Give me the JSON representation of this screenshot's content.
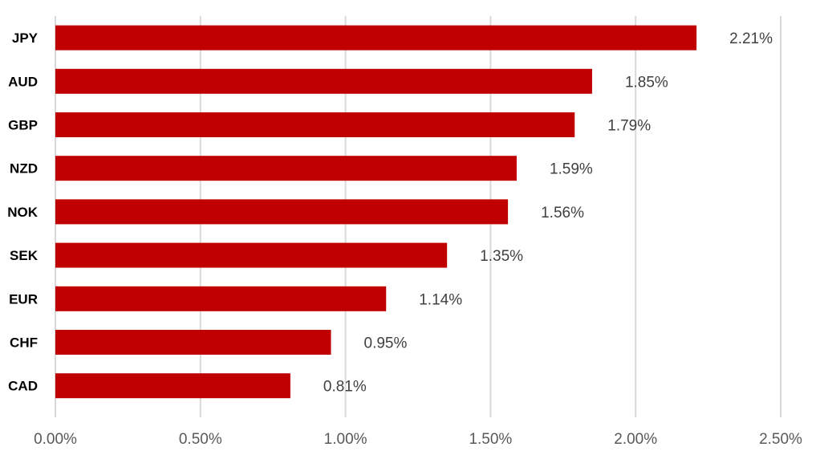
{
  "chart_data": {
    "type": "bar",
    "orientation": "horizontal",
    "categories": [
      "JPY",
      "AUD",
      "GBP",
      "NZD",
      "NOK",
      "SEK",
      "EUR",
      "CHF",
      "CAD"
    ],
    "values": [
      2.21,
      1.85,
      1.79,
      1.59,
      1.56,
      1.35,
      1.14,
      0.95,
      0.81
    ],
    "value_labels": [
      "2.21%",
      "1.85%",
      "1.79%",
      "1.59%",
      "1.56%",
      "1.35%",
      "1.14%",
      "0.95%",
      "0.81%"
    ],
    "x_ticks": [
      "0.00%",
      "0.50%",
      "1.00%",
      "1.50%",
      "2.00%",
      "2.50%"
    ],
    "x_tick_values": [
      0,
      0.5,
      1.0,
      1.5,
      2.0,
      2.5
    ],
    "xlim": [
      0,
      2.5
    ],
    "grid": true,
    "legend": "none",
    "colors": {
      "bar": "#c00000",
      "grid": "#d9d9d9"
    }
  }
}
